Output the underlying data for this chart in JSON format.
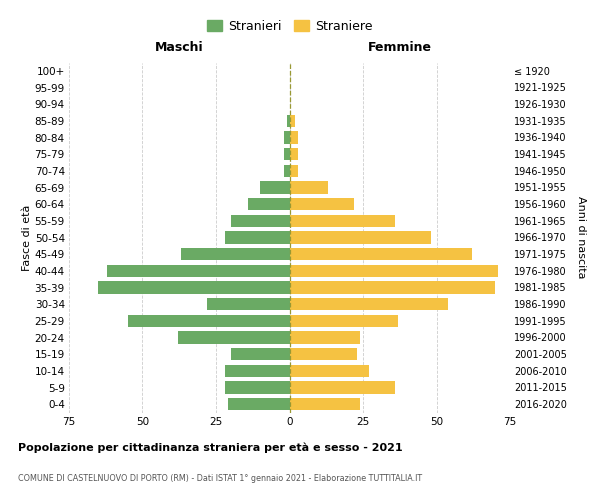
{
  "age_groups": [
    "0-4",
    "5-9",
    "10-14",
    "15-19",
    "20-24",
    "25-29",
    "30-34",
    "35-39",
    "40-44",
    "45-49",
    "50-54",
    "55-59",
    "60-64",
    "65-69",
    "70-74",
    "75-79",
    "80-84",
    "85-89",
    "90-94",
    "95-99",
    "100+"
  ],
  "birth_years": [
    "2016-2020",
    "2011-2015",
    "2006-2010",
    "2001-2005",
    "1996-2000",
    "1991-1995",
    "1986-1990",
    "1981-1985",
    "1976-1980",
    "1971-1975",
    "1966-1970",
    "1961-1965",
    "1956-1960",
    "1951-1955",
    "1946-1950",
    "1941-1945",
    "1936-1940",
    "1931-1935",
    "1926-1930",
    "1921-1925",
    "≤ 1920"
  ],
  "maschi": [
    21,
    22,
    22,
    20,
    38,
    55,
    28,
    65,
    62,
    37,
    22,
    20,
    14,
    10,
    2,
    2,
    2,
    1,
    0,
    0,
    0
  ],
  "femmine": [
    24,
    36,
    27,
    23,
    24,
    37,
    54,
    70,
    71,
    62,
    48,
    36,
    22,
    13,
    3,
    3,
    3,
    2,
    0,
    0,
    0
  ],
  "color_maschi": "#6aaa64",
  "color_femmine": "#f5c242",
  "title": "Popolazione per cittadinanza straniera per età e sesso - 2021",
  "subtitle": "COMUNE DI CASTELNUOVO DI PORTO (RM) - Dati ISTAT 1° gennaio 2021 - Elaborazione TUTTITALIA.IT",
  "xlabel_left": "Maschi",
  "xlabel_right": "Femmine",
  "ylabel_left": "Fasce di età",
  "ylabel_right": "Anni di nascita",
  "legend_maschi": "Stranieri",
  "legend_femmine": "Straniere",
  "xlim": 75,
  "bg_color": "#ffffff",
  "grid_color": "#cccccc"
}
